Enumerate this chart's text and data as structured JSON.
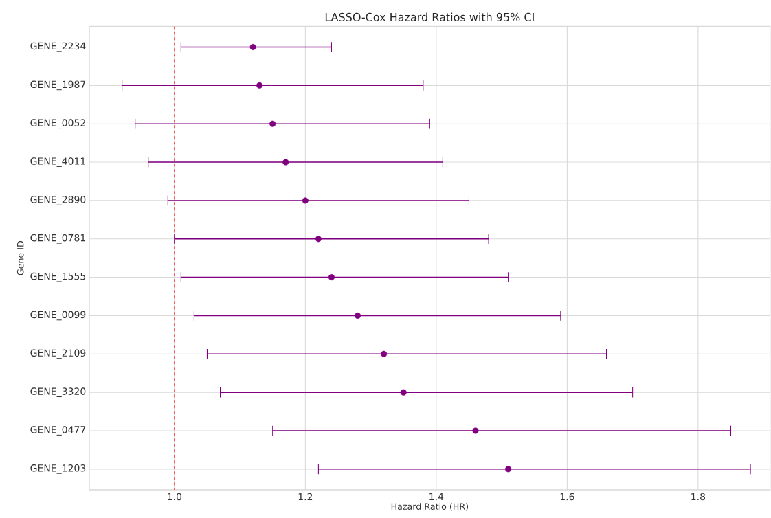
{
  "chart_data": {
    "type": "scatter",
    "orientation": "horizontal",
    "title": "LASSO-Cox Hazard Ratios with 95% CI",
    "xlabel": "Hazard Ratio (HR)",
    "ylabel": "Gene ID",
    "categories": [
      "GENE_2234",
      "GENE_1987",
      "GENE_0052",
      "GENE_4011",
      "GENE_2890",
      "GENE_0781",
      "GENE_1555",
      "GENE_0099",
      "GENE_2109",
      "GENE_3320",
      "GENE_0477",
      "GENE_1203"
    ],
    "values": [
      1.12,
      1.13,
      1.15,
      1.17,
      1.2,
      1.22,
      1.24,
      1.28,
      1.32,
      1.35,
      1.46,
      1.51
    ],
    "errors": [
      [
        1.01,
        1.24
      ],
      [
        0.92,
        1.38
      ],
      [
        0.94,
        1.39
      ],
      [
        0.96,
        1.41
      ],
      [
        0.99,
        1.45
      ],
      [
        1.0,
        1.48
      ],
      [
        1.01,
        1.51
      ],
      [
        1.03,
        1.59
      ],
      [
        1.05,
        1.66
      ],
      [
        1.07,
        1.7
      ],
      [
        1.15,
        1.85
      ],
      [
        1.22,
        1.88
      ]
    ],
    "color": "#800080",
    "xlim": [
      0.87,
      1.91
    ],
    "xticks": [
      {
        "value": 1.0,
        "label": "1.0"
      },
      {
        "value": 1.2,
        "label": "1.2"
      },
      {
        "value": 1.4,
        "label": "1.4"
      },
      {
        "value": 1.6,
        "label": "1.6"
      },
      {
        "value": 1.8,
        "label": "1.8"
      }
    ],
    "ref_lines": [
      {
        "axis": "x",
        "value": 1.0,
        "color": "#ff3333",
        "line_style": "dashed"
      }
    ],
    "grid": true
  }
}
